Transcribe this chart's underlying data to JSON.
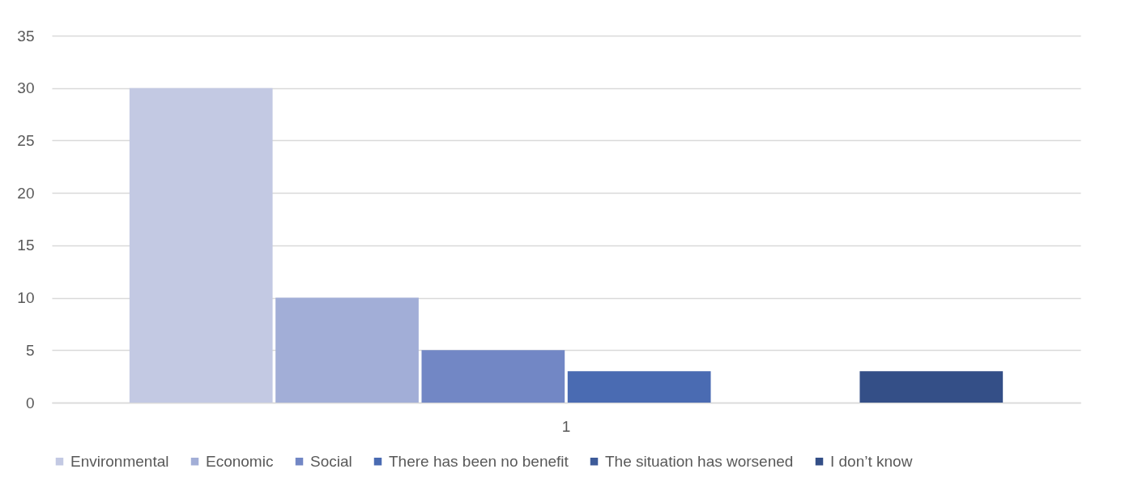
{
  "chart_data": {
    "type": "bar",
    "categories": [
      "1"
    ],
    "series": [
      {
        "name": "Environmental",
        "color": "#c3c9e3",
        "values": [
          30
        ]
      },
      {
        "name": "Economic",
        "color": "#a2aed7",
        "values": [
          10
        ]
      },
      {
        "name": "Social",
        "color": "#7287c5",
        "values": [
          5
        ]
      },
      {
        "name": "There has been no benefit",
        "color": "#4a6bb2",
        "values": [
          3
        ]
      },
      {
        "name": "The situation has worsened",
        "color": "#3d5b99",
        "values": [
          0
        ]
      },
      {
        "name": "I don’t know",
        "color": "#344f87",
        "values": [
          3
        ]
      }
    ],
    "ylim": [
      0,
      35
    ],
    "yticks": [
      0,
      5,
      10,
      15,
      20,
      25,
      30,
      35
    ],
    "grid": "y",
    "legend": "bottom"
  }
}
